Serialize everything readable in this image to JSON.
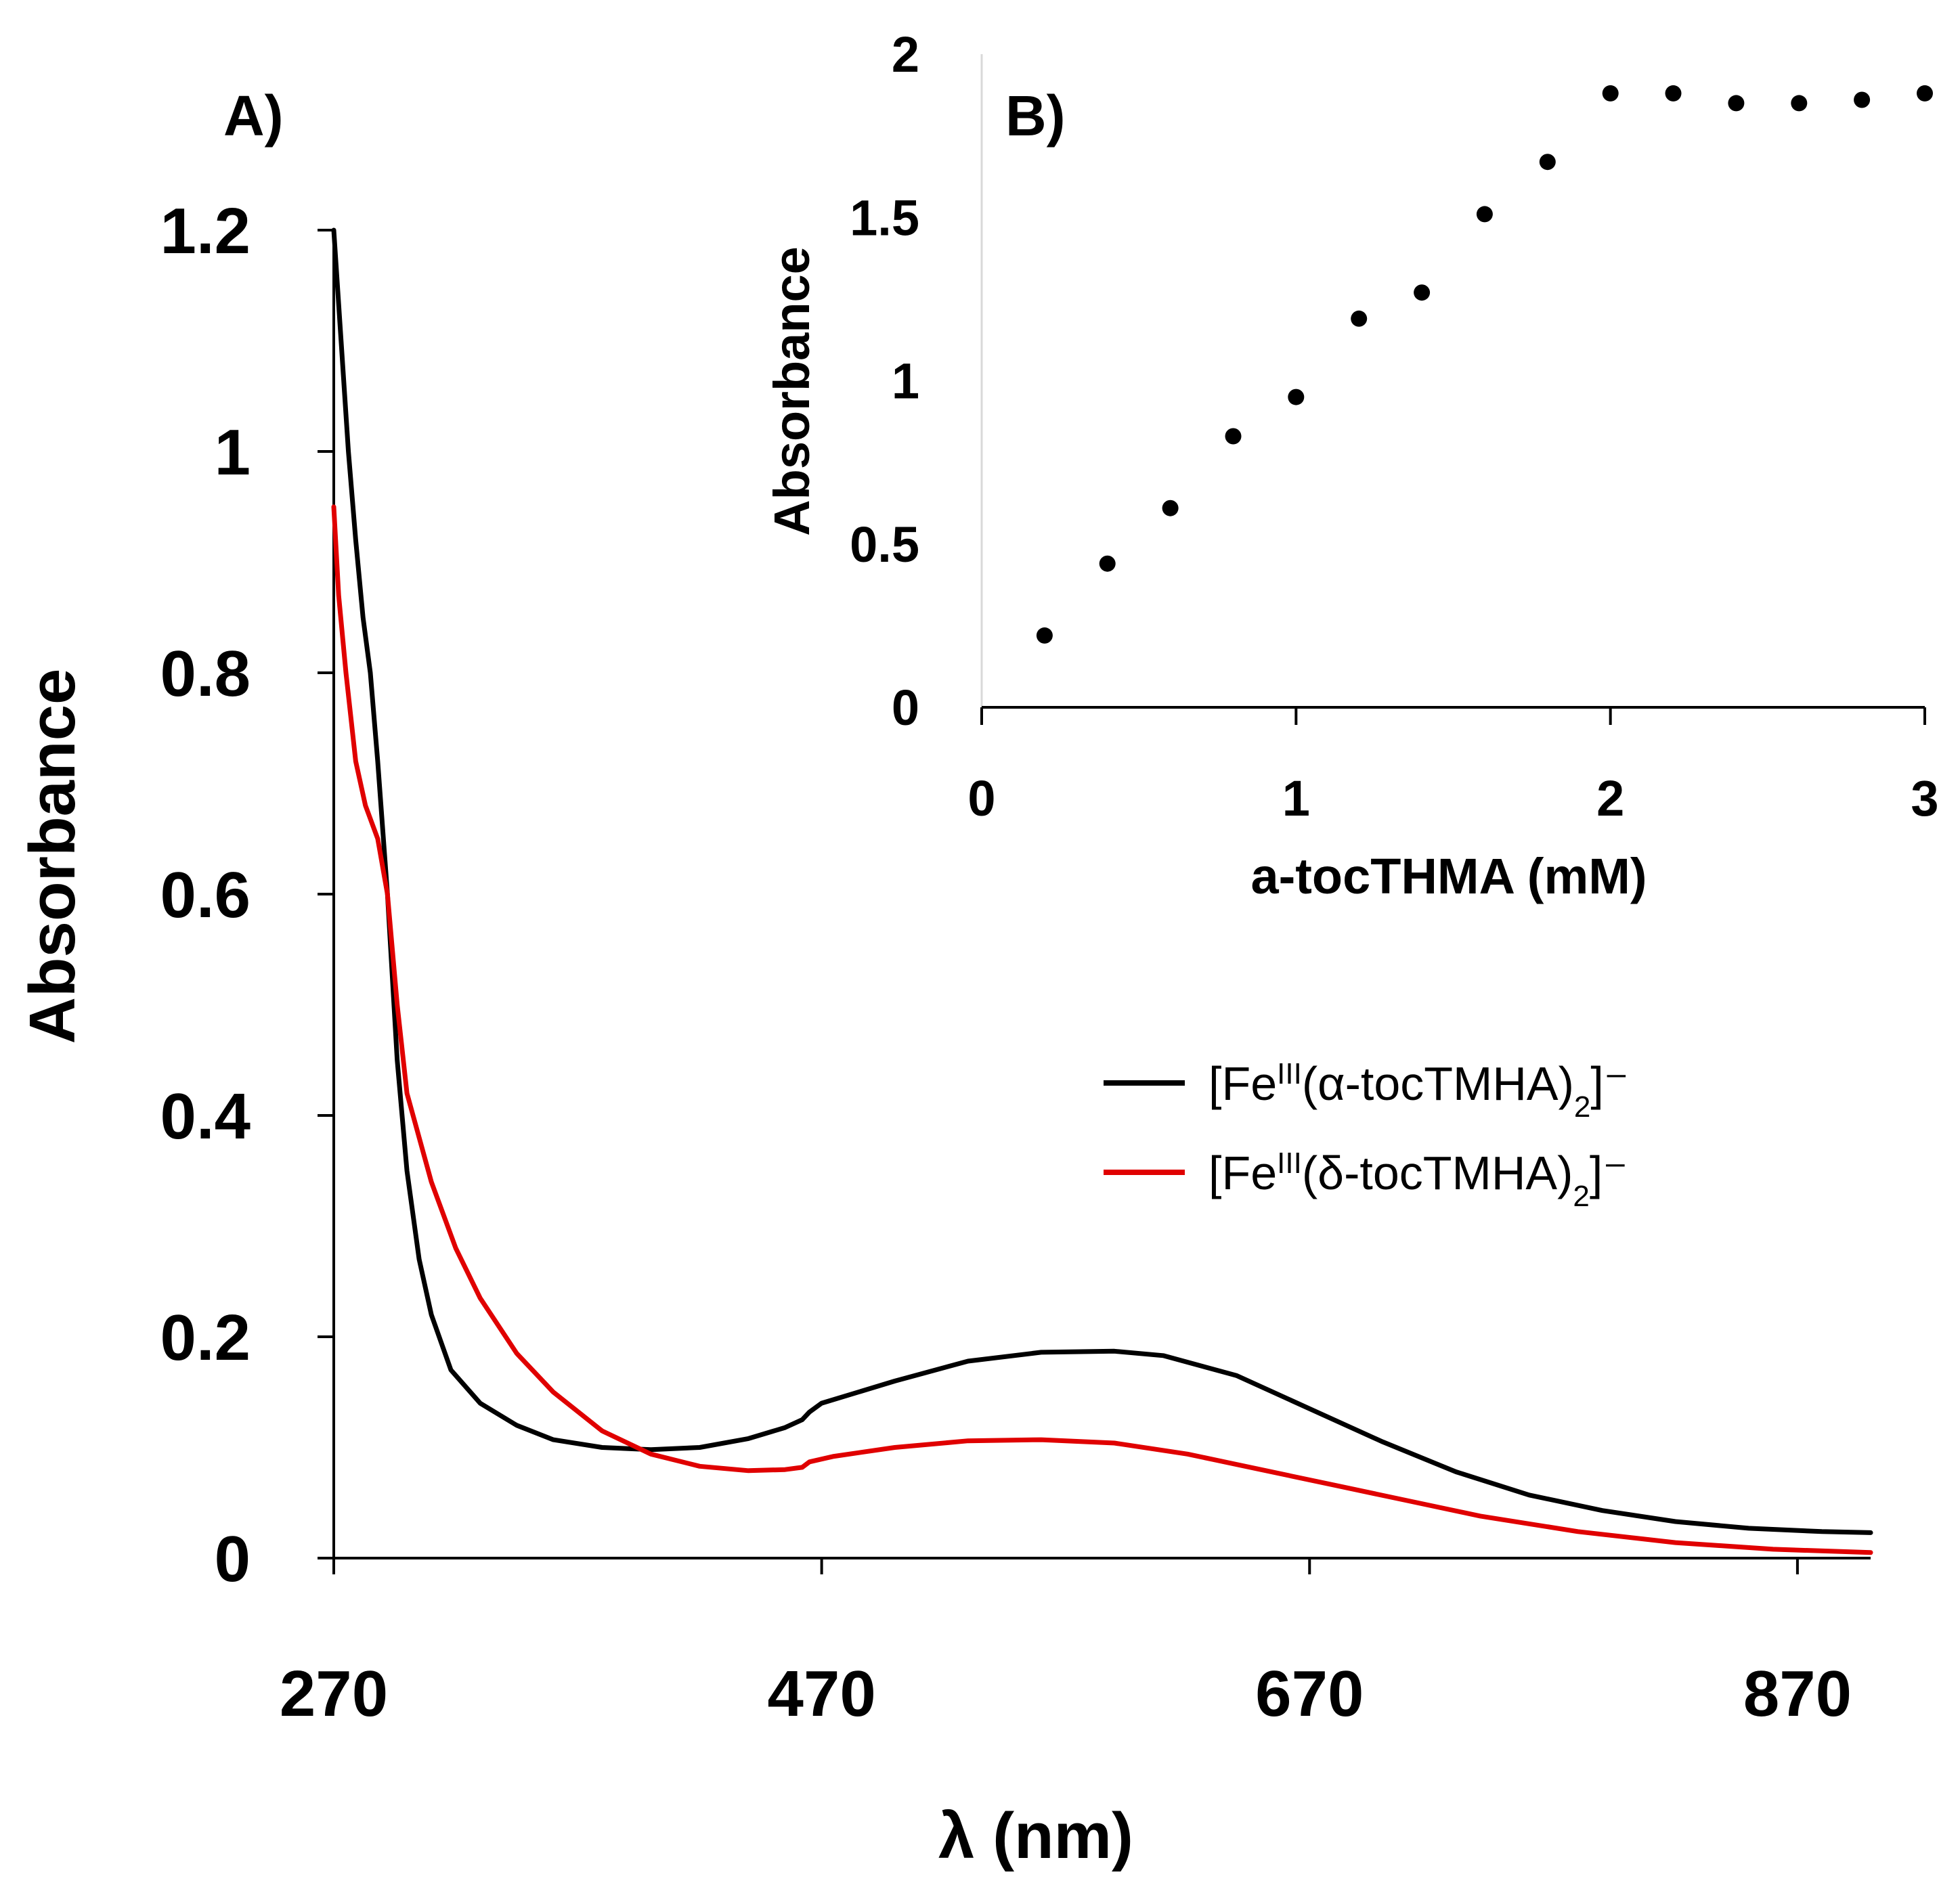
{
  "chart_data": [
    {
      "panel_label": "A)",
      "type": "line",
      "xlabel": "λ (nm)",
      "ylabel": "Absorbance",
      "xlim": [
        270,
        900
      ],
      "ylim": [
        0,
        1.2
      ],
      "xticks": [
        270,
        470,
        670,
        870
      ],
      "yticks": [
        0,
        0.2,
        0.4,
        0.6,
        0.8,
        1,
        1.2
      ],
      "grid": false,
      "legend_position": "center-right",
      "series": [
        {
          "name": "[FeIII(α-tocTMHA)2]−",
          "legend": {
            "prefix": "[Fe",
            "sup": "III",
            "middle": "(α-tocTMHA)",
            "sub": "2",
            "suffix": "]⁻"
          },
          "color": "#000000",
          "x": [
            270,
            273,
            276,
            279,
            282,
            285,
            288,
            292,
            296,
            300,
            305,
            310,
            318,
            330,
            345,
            360,
            380,
            400,
            420,
            440,
            455,
            462,
            465,
            470,
            500,
            530,
            560,
            590,
            610,
            640,
            670,
            700,
            730,
            760,
            790,
            820,
            850,
            880,
            900
          ],
          "y": [
            1.2,
            1.1,
            1.0,
            0.92,
            0.85,
            0.8,
            0.72,
            0.6,
            0.45,
            0.35,
            0.27,
            0.22,
            0.17,
            0.14,
            0.12,
            0.107,
            0.1,
            0.098,
            0.1,
            0.108,
            0.118,
            0.125,
            0.132,
            0.14,
            0.16,
            0.178,
            0.186,
            0.187,
            0.183,
            0.165,
            0.135,
            0.105,
            0.078,
            0.057,
            0.043,
            0.033,
            0.027,
            0.024,
            0.023
          ]
        },
        {
          "name": "[FeIII(δ-tocTMHA)2]−",
          "legend": {
            "prefix": "[Fe",
            "sup": "III",
            "middle": "(δ-tocTMHA)",
            "sub": "2",
            "suffix": "]⁻"
          },
          "color": "#e00000",
          "x": [
            270,
            272,
            275,
            279,
            283,
            288,
            292,
            296,
            300,
            305,
            310,
            320,
            330,
            345,
            360,
            380,
            400,
            420,
            440,
            455,
            462,
            465,
            475,
            500,
            530,
            560,
            590,
            620,
            650,
            680,
            710,
            740,
            780,
            820,
            860,
            900
          ],
          "y": [
            0.95,
            0.87,
            0.8,
            0.72,
            0.68,
            0.65,
            0.6,
            0.5,
            0.42,
            0.38,
            0.34,
            0.28,
            0.235,
            0.185,
            0.15,
            0.115,
            0.094,
            0.083,
            0.079,
            0.08,
            0.082,
            0.087,
            0.092,
            0.1,
            0.106,
            0.107,
            0.104,
            0.094,
            0.08,
            0.066,
            0.052,
            0.038,
            0.024,
            0.014,
            0.008,
            0.005
          ]
        }
      ]
    },
    {
      "panel_label": "B)",
      "type": "scatter",
      "xlabel": "a-tocTHMA (mM)",
      "ylabel": "Absorbance",
      "xlim": [
        0,
        3
      ],
      "ylim": [
        0,
        2
      ],
      "xticks": [
        0,
        1,
        2,
        3
      ],
      "yticks": [
        0,
        0.5,
        1,
        1.5,
        2
      ],
      "grid": false,
      "series": [
        {
          "name": "Absorbance",
          "color": "#000000",
          "x": [
            0.2,
            0.4,
            0.6,
            0.8,
            1.0,
            1.2,
            1.4,
            1.6,
            1.8,
            2.0,
            2.2,
            2.4,
            2.6,
            2.8,
            3.0
          ],
          "y": [
            0.22,
            0.44,
            0.61,
            0.83,
            0.95,
            1.19,
            1.27,
            1.51,
            1.67,
            1.88,
            1.88,
            1.85,
            1.85,
            1.86,
            1.88
          ]
        }
      ]
    }
  ]
}
